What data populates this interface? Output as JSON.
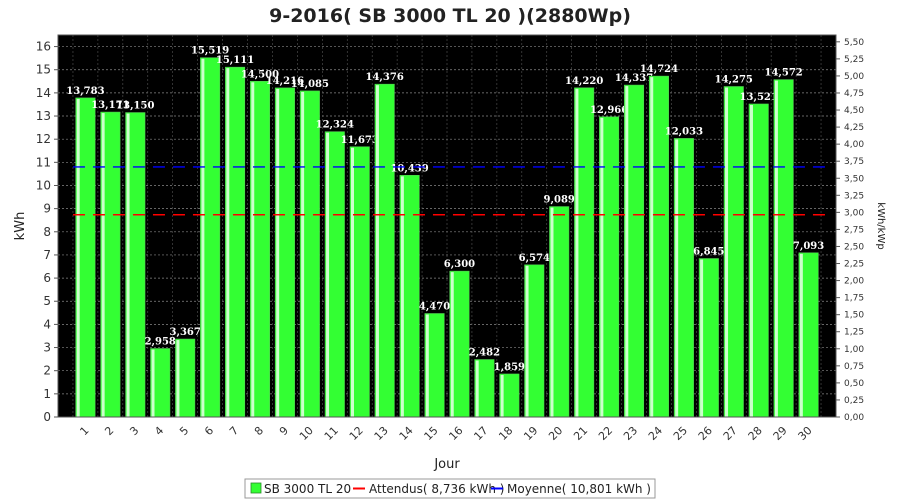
{
  "chart_data": {
    "type": "bar",
    "title": "9-2016( SB 3000 TL 20 )(2880Wp)",
    "xlabel": "Jour",
    "ylabel": "kWh",
    "ylabel_right": "kWh/kWp",
    "ylim": [
      0,
      16.5
    ],
    "ylim_right": [
      0,
      5.6
    ],
    "yticks": [
      "0",
      "1",
      "2",
      "3",
      "4",
      "5",
      "6",
      "7",
      "8",
      "9",
      "10",
      "11",
      "12",
      "13",
      "14",
      "15",
      "16"
    ],
    "yticks_right": [
      "0,00",
      "0,25",
      "0,50",
      "0,75",
      "1,00",
      "1,25",
      "1,50",
      "1,75",
      "2,00",
      "2,25",
      "2,50",
      "2,75",
      "3,00",
      "3,25",
      "3,50",
      "3,75",
      "4,00",
      "4,25",
      "4,50",
      "4,75",
      "5,00",
      "5,25",
      "5,50"
    ],
    "categories": [
      "1",
      "2",
      "3",
      "4",
      "5",
      "6",
      "7",
      "8",
      "9",
      "10",
      "11",
      "12",
      "13",
      "14",
      "15",
      "16",
      "17",
      "18",
      "19",
      "20",
      "21",
      "22",
      "23",
      "24",
      "25",
      "26",
      "27",
      "28",
      "29",
      "30"
    ],
    "series": [
      {
        "name": "SB 3000 TL 20",
        "color": "#33ff33",
        "values": [
          13.783,
          13.171,
          13.15,
          2.958,
          3.367,
          15.519,
          15.111,
          14.5,
          14.216,
          14.085,
          12.324,
          11.673,
          14.376,
          10.439,
          4.47,
          6.3,
          2.482,
          1.859,
          6.574,
          9.089,
          14.22,
          12.966,
          14.337,
          14.724,
          12.033,
          6.845,
          14.275,
          13.521,
          14.572,
          7.093
        ],
        "labels": [
          "13,783",
          "13,171",
          "13,150",
          "2,958",
          "3,367",
          "15,519",
          "15,111",
          "14,500",
          "14,216",
          "14,085",
          "12,324",
          "11,673",
          "14,376",
          "10,439",
          "4,470",
          "6,300",
          "2,482",
          "1,859",
          "6,574",
          "9,089",
          "14,220",
          "12,966",
          "14,337",
          "14,724",
          "12,033",
          "6,845",
          "14,275",
          "13,521",
          "14,572",
          "7,093"
        ]
      }
    ],
    "reference_lines": [
      {
        "name": "Attendus( 8,736 kWh )",
        "value": 8.736,
        "color": "#ff0000"
      },
      {
        "name": "Moyenne( 10,801 kWh )",
        "value": 10.801,
        "color": "#0000ff"
      }
    ],
    "grid": true,
    "legend_position": "bottom",
    "colors": {
      "plot_background": "#000000",
      "grid": "#888888",
      "bar_fill": "#33ff33",
      "bar_highlight": "#ccffcc"
    }
  }
}
